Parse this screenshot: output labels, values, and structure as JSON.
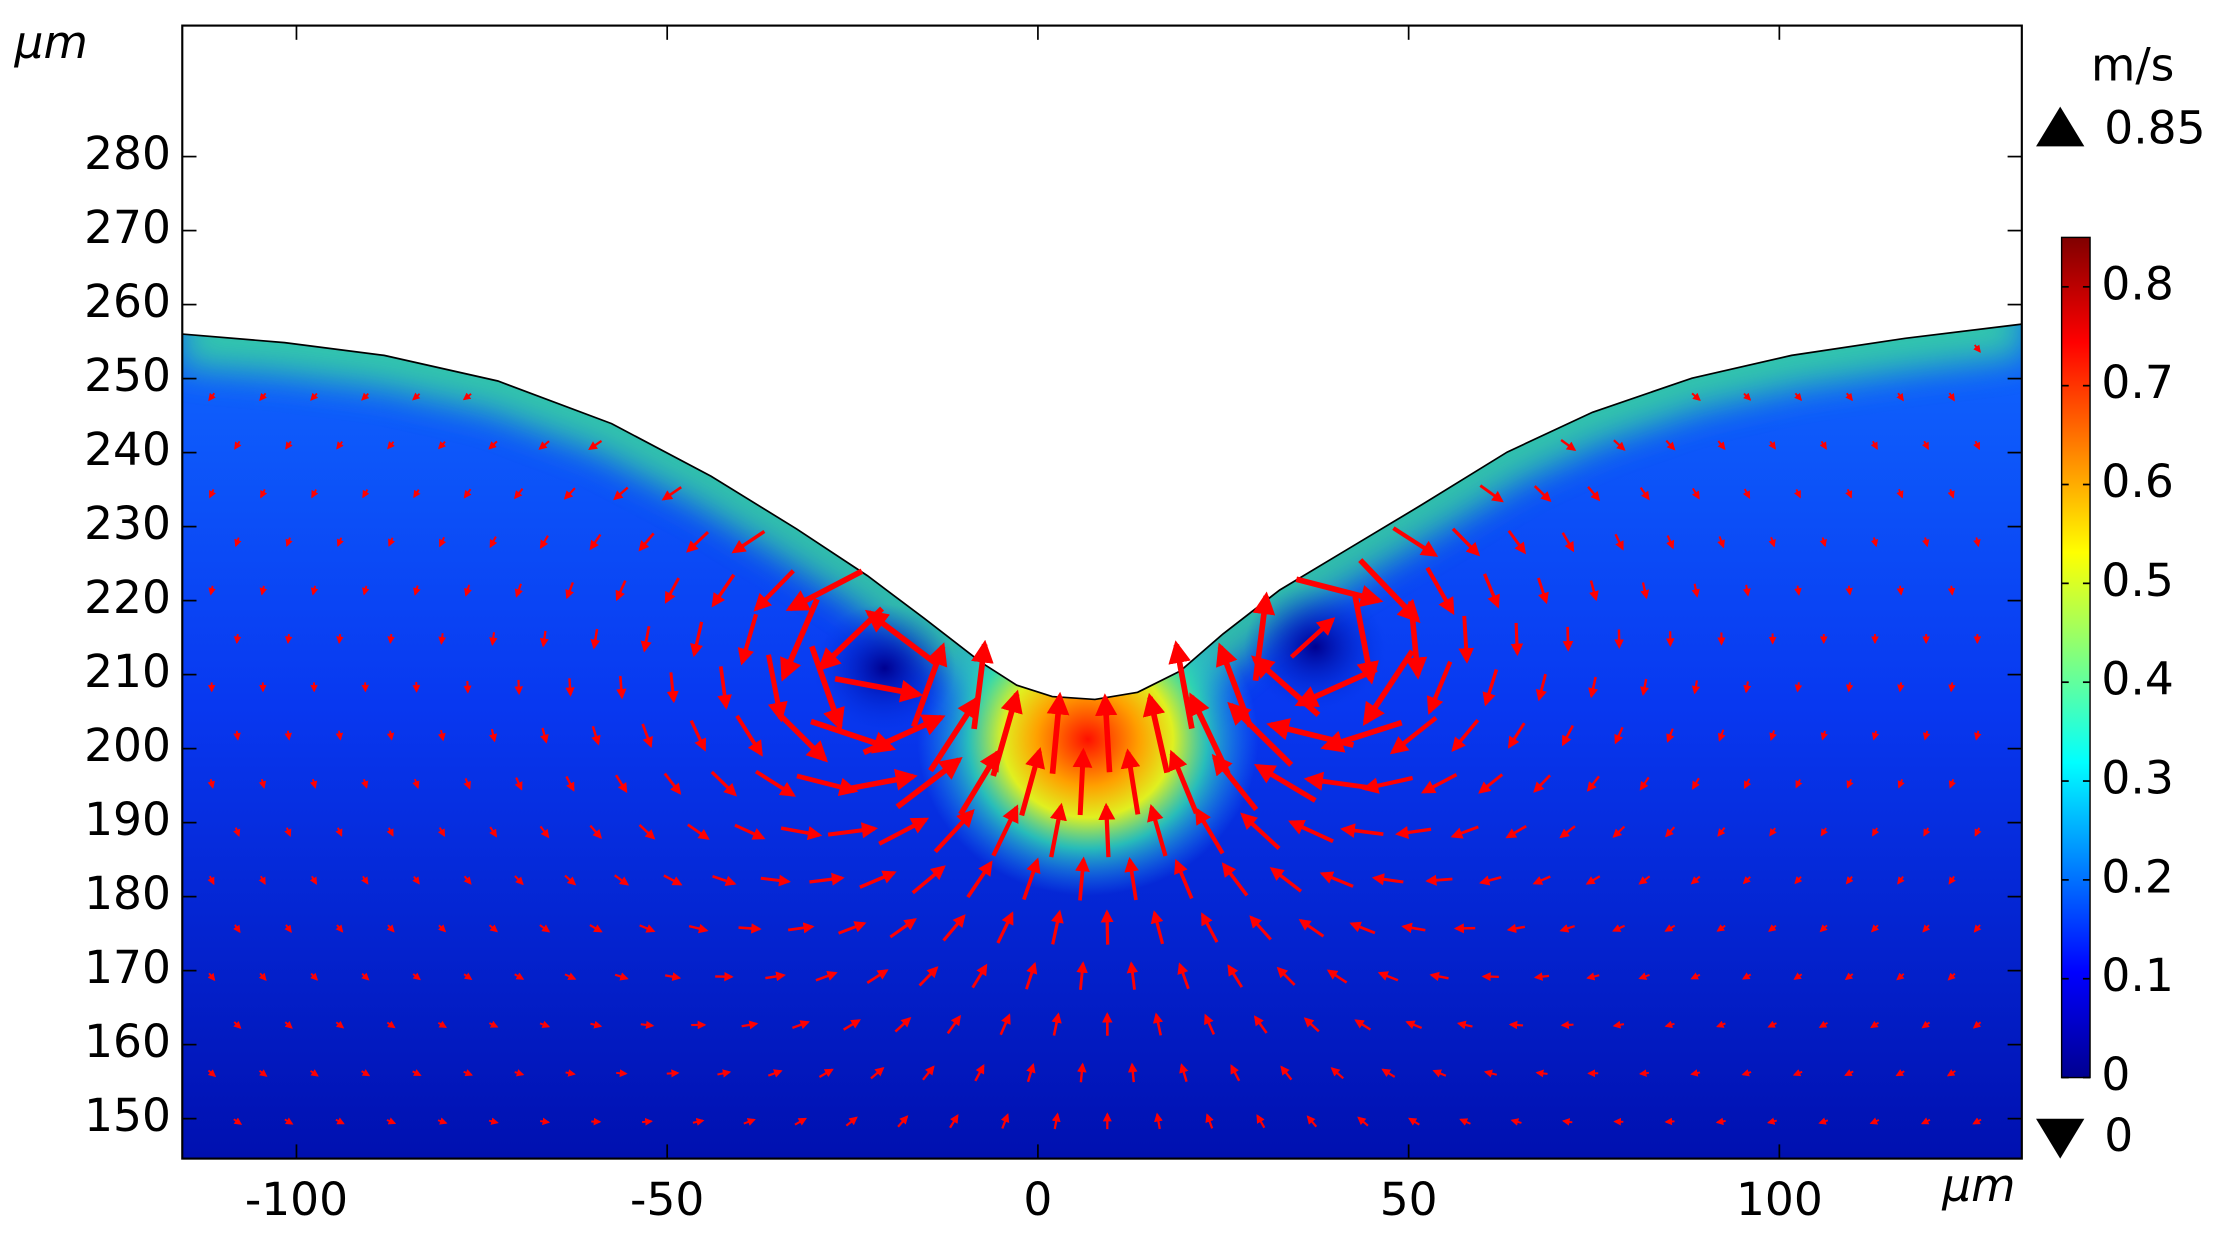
{
  "chart_data": {
    "type": "surface",
    "xlabel": "μm",
    "ylabel": "μm",
    "xlim": [
      -115.4,
      132.7
    ],
    "xticks": [
      -100,
      -50,
      0,
      50,
      100
    ],
    "ylim": [
      144.6,
      297.7
    ],
    "yticks": [
      150,
      160,
      170,
      180,
      190,
      200,
      210,
      220,
      230,
      240,
      250,
      260,
      270,
      280
    ],
    "colorbar": {
      "label": "m/s",
      "colormap": "jet",
      "lim": [
        0,
        0.85
      ],
      "ticks": [
        0,
        0.1,
        0.2,
        0.3,
        0.4,
        0.5,
        0.6,
        0.7,
        0.8
      ],
      "max": 0.85,
      "min": 0
    },
    "arrow_color": "#ff0000"
  }
}
